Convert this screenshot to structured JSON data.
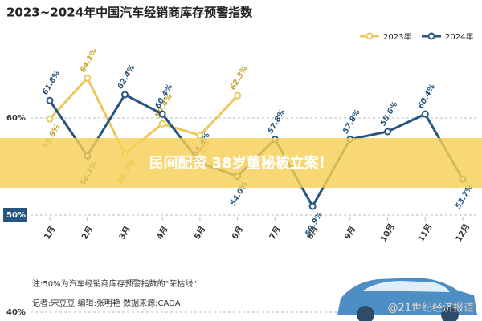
{
  "chart_data": {
    "type": "line",
    "title": "2023~2024年中国汽车经销商库存预警指数",
    "categories": [
      "1月",
      "2月",
      "3月",
      "4月",
      "5月",
      "6月",
      "7月",
      "8月",
      "9月",
      "10月",
      "11月",
      "12月"
    ],
    "series": [
      {
        "name": "2023年",
        "color": "#ecc85a",
        "values": [
          59.9,
          64.1,
          56.3,
          59.4,
          58.2,
          62.3,
          null,
          null,
          null,
          null,
          null,
          null
        ],
        "value_labels": [
          "59.9%",
          "64.1%",
          "56.3%",
          "59.4%",
          "58.2%",
          "62.3%",
          null,
          null,
          null,
          null,
          null,
          null
        ]
      },
      {
        "name": "2024年",
        "color": "#27557f",
        "values": [
          61.8,
          56.1,
          62.4,
          60.4,
          55.4,
          54.0,
          57.8,
          50.9,
          57.8,
          58.6,
          60.4,
          53.7
        ],
        "value_labels": [
          "61.8%",
          "56.1%",
          "62.4%",
          "60.4%",
          "55.4%",
          "54.0%",
          "57.8%",
          "50.9%",
          "57.8%",
          "58.6%",
          "60.4%",
          "53.7%"
        ]
      }
    ],
    "ylim": [
      40,
      70
    ],
    "yticks": [
      {
        "value": 40,
        "label": "40%"
      },
      {
        "value": 50,
        "label": "50%"
      },
      {
        "value": 60,
        "label": "60%"
      }
    ],
    "grid": true,
    "legend": "top-right",
    "notes": [
      "注:50%为汽车经销商库存预警指数的\"荣枯线\"",
      "记者:宋豆豆   编辑:张明艳   数据来源:CADA"
    ],
    "banner": "民间配资 38岁董秘被立案！",
    "watermark": "@21世纪经济报道"
  }
}
